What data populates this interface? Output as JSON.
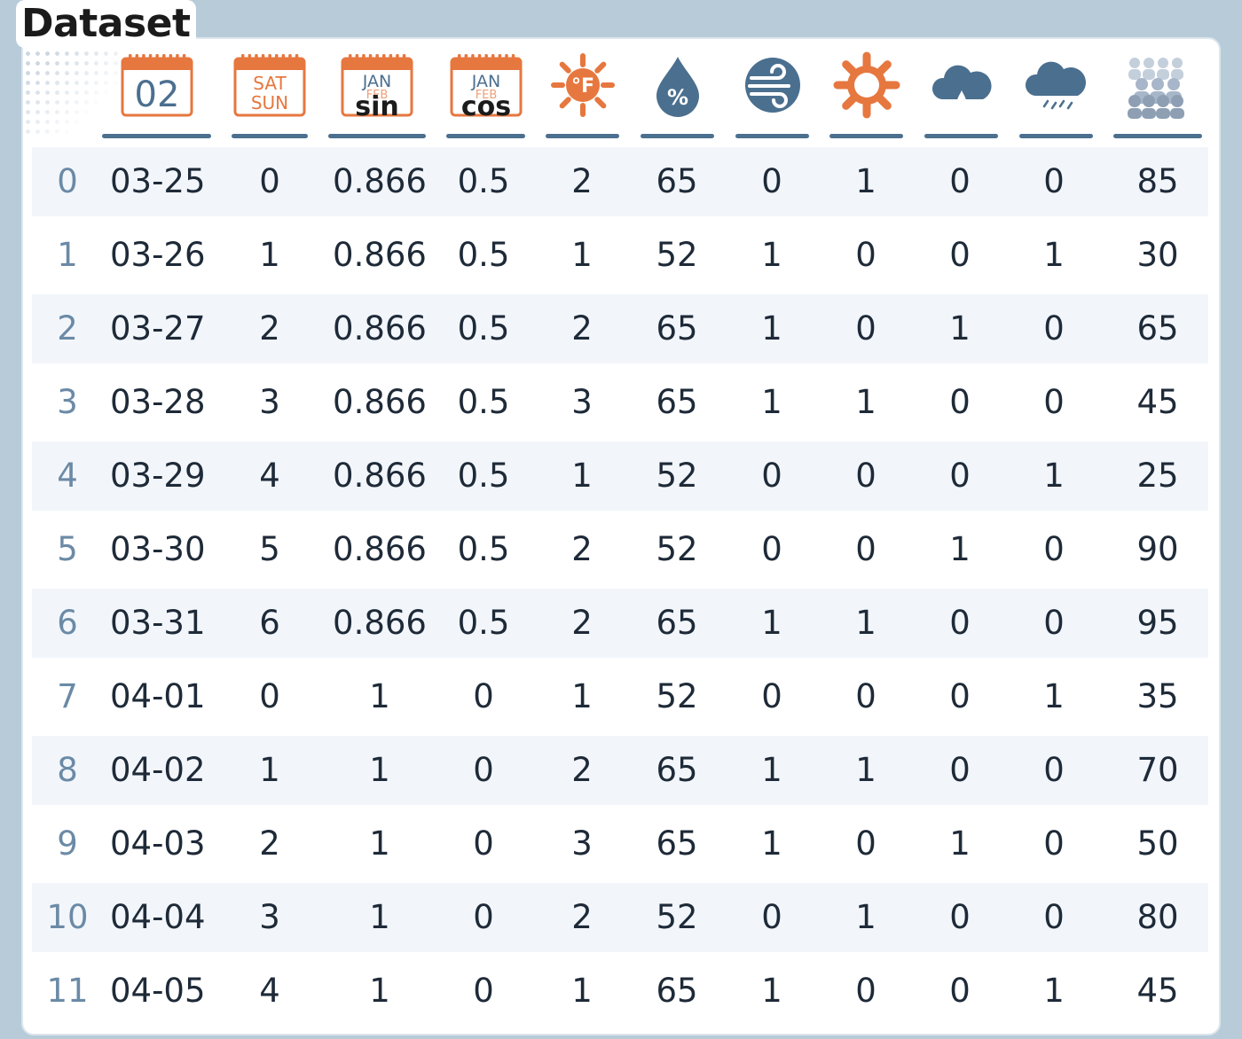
{
  "title": "Dataset",
  "colors": {
    "orange": "#e6773f",
    "blue": "#4b6f8f",
    "background": "#b8cbd9"
  },
  "columns": [
    {
      "key": "date",
      "icon": "calendar-date-icon",
      "icon_text": [
        "02"
      ]
    },
    {
      "key": "weekday",
      "icon": "calendar-weekend-icon",
      "icon_text": [
        "SAT",
        "SUN"
      ]
    },
    {
      "key": "month_sin",
      "icon": "calendar-month-sin-icon",
      "icon_text": [
        "JAN",
        "FEB",
        "sin"
      ]
    },
    {
      "key": "month_cos",
      "icon": "calendar-month-cos-icon",
      "icon_text": [
        "JAN",
        "FEB",
        "cos"
      ]
    },
    {
      "key": "temperature",
      "icon": "sun-fahrenheit-icon",
      "icon_text": [
        "°F"
      ]
    },
    {
      "key": "humidity",
      "icon": "humidity-drop-icon",
      "icon_text": [
        "%"
      ]
    },
    {
      "key": "wind",
      "icon": "wind-icon",
      "icon_text": []
    },
    {
      "key": "sunny",
      "icon": "sun-icon",
      "icon_text": []
    },
    {
      "key": "rain",
      "icon": "rain-cloud-icon",
      "icon_text": []
    },
    {
      "key": "snow",
      "icon": "snow-cloud-icon",
      "icon_text": []
    },
    {
      "key": "attendance",
      "icon": "crowd-icon",
      "icon_text": []
    }
  ],
  "rows": [
    {
      "index": "0",
      "cells": [
        "03-25",
        "0",
        "0.866",
        "0.5",
        "2",
        "65",
        "0",
        "1",
        "0",
        "0",
        "85"
      ]
    },
    {
      "index": "1",
      "cells": [
        "03-26",
        "1",
        "0.866",
        "0.5",
        "1",
        "52",
        "1",
        "0",
        "0",
        "1",
        "30"
      ]
    },
    {
      "index": "2",
      "cells": [
        "03-27",
        "2",
        "0.866",
        "0.5",
        "2",
        "65",
        "1",
        "0",
        "1",
        "0",
        "65"
      ]
    },
    {
      "index": "3",
      "cells": [
        "03-28",
        "3",
        "0.866",
        "0.5",
        "3",
        "65",
        "1",
        "1",
        "0",
        "0",
        "45"
      ]
    },
    {
      "index": "4",
      "cells": [
        "03-29",
        "4",
        "0.866",
        "0.5",
        "1",
        "52",
        "0",
        "0",
        "0",
        "1",
        "25"
      ]
    },
    {
      "index": "5",
      "cells": [
        "03-30",
        "5",
        "0.866",
        "0.5",
        "2",
        "52",
        "0",
        "0",
        "1",
        "0",
        "90"
      ]
    },
    {
      "index": "6",
      "cells": [
        "03-31",
        "6",
        "0.866",
        "0.5",
        "2",
        "65",
        "1",
        "1",
        "0",
        "0",
        "95"
      ]
    },
    {
      "index": "7",
      "cells": [
        "04-01",
        "0",
        "1",
        "0",
        "1",
        "52",
        "0",
        "0",
        "0",
        "1",
        "35"
      ]
    },
    {
      "index": "8",
      "cells": [
        "04-02",
        "1",
        "1",
        "0",
        "2",
        "65",
        "1",
        "1",
        "0",
        "0",
        "70"
      ]
    },
    {
      "index": "9",
      "cells": [
        "04-03",
        "2",
        "1",
        "0",
        "3",
        "65",
        "1",
        "0",
        "1",
        "0",
        "50"
      ]
    },
    {
      "index": "10",
      "cells": [
        "04-04",
        "3",
        "1",
        "0",
        "2",
        "52",
        "0",
        "1",
        "0",
        "0",
        "80"
      ]
    },
    {
      "index": "11",
      "cells": [
        "04-05",
        "4",
        "1",
        "0",
        "1",
        "65",
        "1",
        "0",
        "0",
        "1",
        "45"
      ]
    }
  ]
}
